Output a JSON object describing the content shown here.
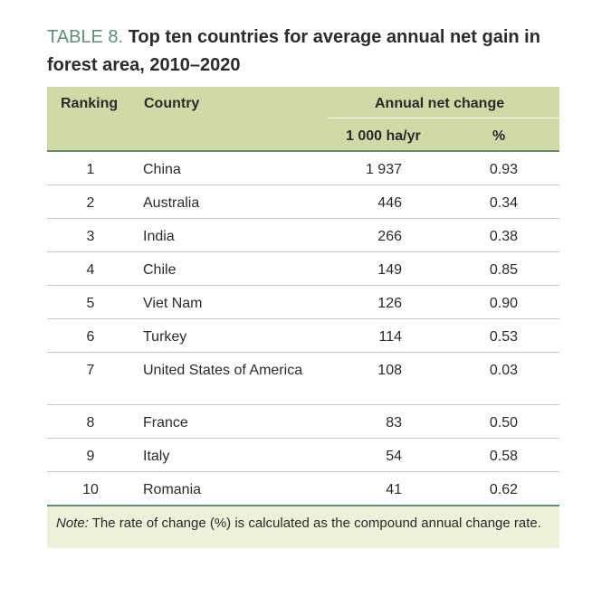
{
  "title": {
    "label": "TABLE 8.",
    "text": "Top ten countries for average annual net gain in forest area, 2010–2020"
  },
  "header": {
    "ranking": "Ranking",
    "country": "Country",
    "group": "Annual net change",
    "unit_ha": "1 000 ha/yr",
    "unit_pct": "%"
  },
  "rows": [
    {
      "rank": "1",
      "country": "China",
      "ha": "1 937",
      "pct": "0.93"
    },
    {
      "rank": "2",
      "country": "Australia",
      "ha": "446",
      "pct": "0.34"
    },
    {
      "rank": "3",
      "country": "India",
      "ha": "266",
      "pct": "0.38"
    },
    {
      "rank": "4",
      "country": "Chile",
      "ha": "149",
      "pct": "0.85"
    },
    {
      "rank": "5",
      "country": "Viet Nam",
      "ha": "126",
      "pct": "0.90"
    },
    {
      "rank": "6",
      "country": "Turkey",
      "ha": "114",
      "pct": "0.53"
    },
    {
      "rank": "7",
      "country": "United States of America",
      "ha": "108",
      "pct": "0.03"
    },
    {
      "rank": "8",
      "country": "France",
      "ha": "83",
      "pct": "0.50"
    },
    {
      "rank": "9",
      "country": "Italy",
      "ha": "54",
      "pct": "0.58"
    },
    {
      "rank": "10",
      "country": "Romania",
      "ha": "41",
      "pct": "0.62"
    }
  ],
  "note": {
    "label": "Note:",
    "text": "The rate of change (%) is calculated as the compound annual change rate."
  },
  "colors": {
    "accent": "#5f8f76",
    "header_bg": "#d1d9a6",
    "note_bg": "#eef1d9"
  }
}
